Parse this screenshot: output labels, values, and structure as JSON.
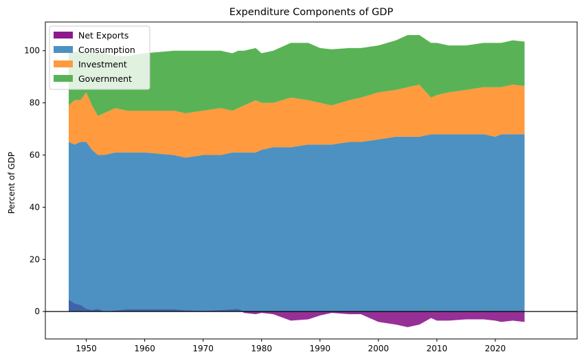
{
  "chart_data": {
    "type": "area",
    "title": "Expenditure Components of GDP",
    "xlabel": "",
    "ylabel": "Percent of GDP",
    "xlim": [
      1943,
      2034
    ],
    "ylim": [
      -10.5,
      111
    ],
    "x_ticks": [
      1950,
      1960,
      1970,
      1980,
      1990,
      2000,
      2010,
      2020
    ],
    "y_ticks": [
      0,
      20,
      40,
      60,
      80,
      100
    ],
    "grid": false,
    "zero_line": true,
    "legend_position": "top-left",
    "colors": {
      "net_exports": "#8b1a8b",
      "consumption": "#4c91c2",
      "investment": "#ff9a3e",
      "government": "#59b356",
      "overlap": "#3f63a8",
      "zero_line": "#000000"
    },
    "x": [
      1947,
      1948,
      1949,
      1950,
      1951,
      1952,
      1953,
      1955,
      1957,
      1960,
      1965,
      1967,
      1970,
      1973,
      1975,
      1976,
      1977,
      1979,
      1980,
      1982,
      1985,
      1988,
      1990,
      1992,
      1995,
      1997,
      2000,
      2003,
      2005,
      2007,
      2009,
      2010,
      2012,
      2015,
      2018,
      2020,
      2021,
      2023,
      2025
    ],
    "series": [
      {
        "name": "Net Exports",
        "values": [
          4.5,
          3.0,
          2.5,
          1.0,
          0.5,
          1.0,
          0.0,
          0.3,
          0.8,
          0.8,
          0.8,
          0.4,
          0.2,
          0.5,
          0.8,
          1.0,
          -0.5,
          -1.0,
          -0.5,
          -1.0,
          -3.5,
          -3.0,
          -1.5,
          -0.5,
          -1.0,
          -1.0,
          -4.0,
          -5.0,
          -6.0,
          -5.0,
          -2.5,
          -3.5,
          -3.5,
          -3.0,
          -3.0,
          -3.5,
          -4.0,
          -3.5,
          -4.0
        ]
      },
      {
        "name": "Consumption",
        "values": [
          65.0,
          64.0,
          65.0,
          65.0,
          62.0,
          60.0,
          60.0,
          61.0,
          61.0,
          61.0,
          60.0,
          59.0,
          60.0,
          60.0,
          61.0,
          61.0,
          61.0,
          61.0,
          62.0,
          63.0,
          63.0,
          64.0,
          64.0,
          64.0,
          65.0,
          65.0,
          66.0,
          67.0,
          67.0,
          67.0,
          68.0,
          68.0,
          68.0,
          68.0,
          68.0,
          67.0,
          68.0,
          68.0,
          68.0
        ]
      },
      {
        "name": "Investment",
        "values": [
          14.0,
          17.0,
          16.0,
          19.0,
          17.0,
          15.0,
          16.0,
          17.0,
          16.0,
          16.0,
          17.0,
          17.0,
          17.0,
          18.0,
          16.0,
          17.0,
          18.0,
          20.0,
          18.0,
          17.0,
          19.0,
          17.0,
          16.0,
          15.0,
          16.0,
          17.0,
          18.0,
          18.0,
          19.0,
          20.0,
          14.0,
          15.0,
          16.0,
          17.0,
          18.0,
          19.0,
          18.0,
          19.0,
          18.5
        ]
      },
      {
        "name": "Government",
        "values": [
          21.0,
          18.5,
          19.0,
          15.0,
          20.0,
          24.0,
          23.0,
          20.0,
          21.0,
          22.0,
          23.0,
          24.0,
          23.0,
          22.0,
          22.0,
          22.0,
          21.0,
          20.0,
          19.0,
          20.0,
          21.0,
          22.0,
          21.0,
          21.5,
          20.0,
          19.0,
          18.0,
          19.0,
          20.0,
          19.0,
          21.0,
          20.0,
          18.0,
          17.0,
          17.0,
          17.0,
          17.0,
          17.0,
          17.0
        ]
      }
    ],
    "legend": [
      "Net Exports",
      "Consumption",
      "Investment",
      "Government"
    ]
  }
}
